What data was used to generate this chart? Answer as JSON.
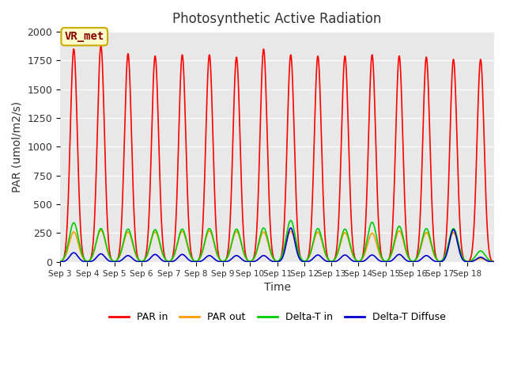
{
  "title": "Photosynthetic Active Radiation",
  "ylabel": "PAR (umol/m2/s)",
  "xlabel": "Time",
  "ylim": [
    0,
    2000
  ],
  "bg_color": "#e8e8e8",
  "fig_color": "#ffffff",
  "annotation_text": "VR_met",
  "annotation_bg": "#ffffcc",
  "annotation_border": "#ccaa00",
  "annotation_text_color": "#880000",
  "xtick_labels": [
    "Sep 3",
    "Sep 4",
    "Sep 5",
    "Sep 6",
    "Sep 7",
    "Sep 8",
    "Sep 9",
    "Sep 10",
    "Sep 11",
    "Sep 12",
    "Sep 13",
    "Sep 14",
    "Sep 15",
    "Sep 16",
    "Sep 17",
    "Sep 18"
  ],
  "n_days": 16,
  "day_peaks_PAR_in": [
    1850,
    1880,
    1810,
    1790,
    1800,
    1800,
    1780,
    1850,
    1800,
    1790,
    1790,
    1800,
    1790,
    1780,
    1760,
    1760
  ],
  "day_peaks_PAR_out": [
    260,
    275,
    260,
    260,
    265,
    270,
    265,
    260,
    265,
    260,
    255,
    250,
    270,
    255,
    255,
    30
  ],
  "day_peaks_Delta_T_in": [
    340,
    290,
    285,
    280,
    285,
    290,
    285,
    295,
    360,
    290,
    285,
    345,
    310,
    290,
    290,
    95
  ],
  "day_peaks_Delta_T_diffuse": [
    80,
    70,
    55,
    65,
    65,
    55,
    55,
    55,
    295,
    60,
    60,
    60,
    65,
    55,
    280,
    40
  ],
  "color_PAR_in": "#ff0000",
  "color_PAR_out": "#ff9900",
  "color_Delta_T_in": "#00cc00",
  "color_Delta_T_diffuse": "#0000cc",
  "line_width": 1.2
}
